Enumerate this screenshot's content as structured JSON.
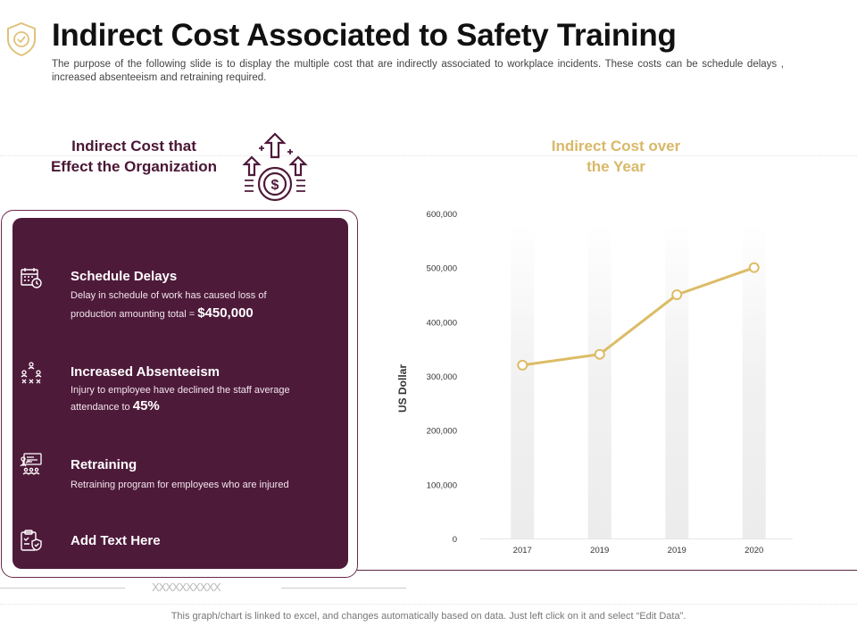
{
  "header": {
    "title": "Indirect Cost Associated to Safety Training",
    "subtitle": "The purpose of the following slide is to display the multiple cost that are indirectly associated to workplace incidents. These costs can be schedule delays , increased absenteeism and retraining required."
  },
  "left": {
    "heading_line1": "Indirect Cost that",
    "heading_line2": "Effect the Organization",
    "items": [
      {
        "icon": "calendar-clock-icon",
        "title": "Schedule Delays",
        "desc_line1": "Delay in schedule of work has caused loss of",
        "desc_line2": "production amounting total =",
        "highlight": "$450,000"
      },
      {
        "icon": "people-network-icon",
        "title": "Increased Absenteeism",
        "desc_line1": "Injury to employee have declined the staff average",
        "desc_line2": "attendance to",
        "highlight": "45%"
      },
      {
        "icon": "training-board-icon",
        "title": "Retraining",
        "desc_line1": "Retraining program for employees who are injured"
      },
      {
        "icon": "clipboard-shield-icon",
        "title": "Add Text Here"
      }
    ]
  },
  "right": {
    "heading_line1": "Indirect Cost over",
    "heading_line2": "the Year"
  },
  "chart_data": {
    "type": "line",
    "categories": [
      "2017",
      "2019",
      "2019",
      "2020"
    ],
    "values": [
      320000,
      340000,
      450000,
      500000
    ],
    "ylim": [
      0,
      600000
    ],
    "yticks": [
      "0",
      "100,000",
      "200,000",
      "300,000",
      "400,000",
      "500,000",
      "600,000"
    ],
    "ylabel": "US Dollar",
    "xlabel": "",
    "grid": false,
    "line_color": "#dcbc66"
  },
  "footer": {
    "x_marks": "XXXXXXXXXX",
    "note": "This graph/chart is linked to excel, and changes automatically based on data. Just left click on it and select “Edit Data”."
  }
}
